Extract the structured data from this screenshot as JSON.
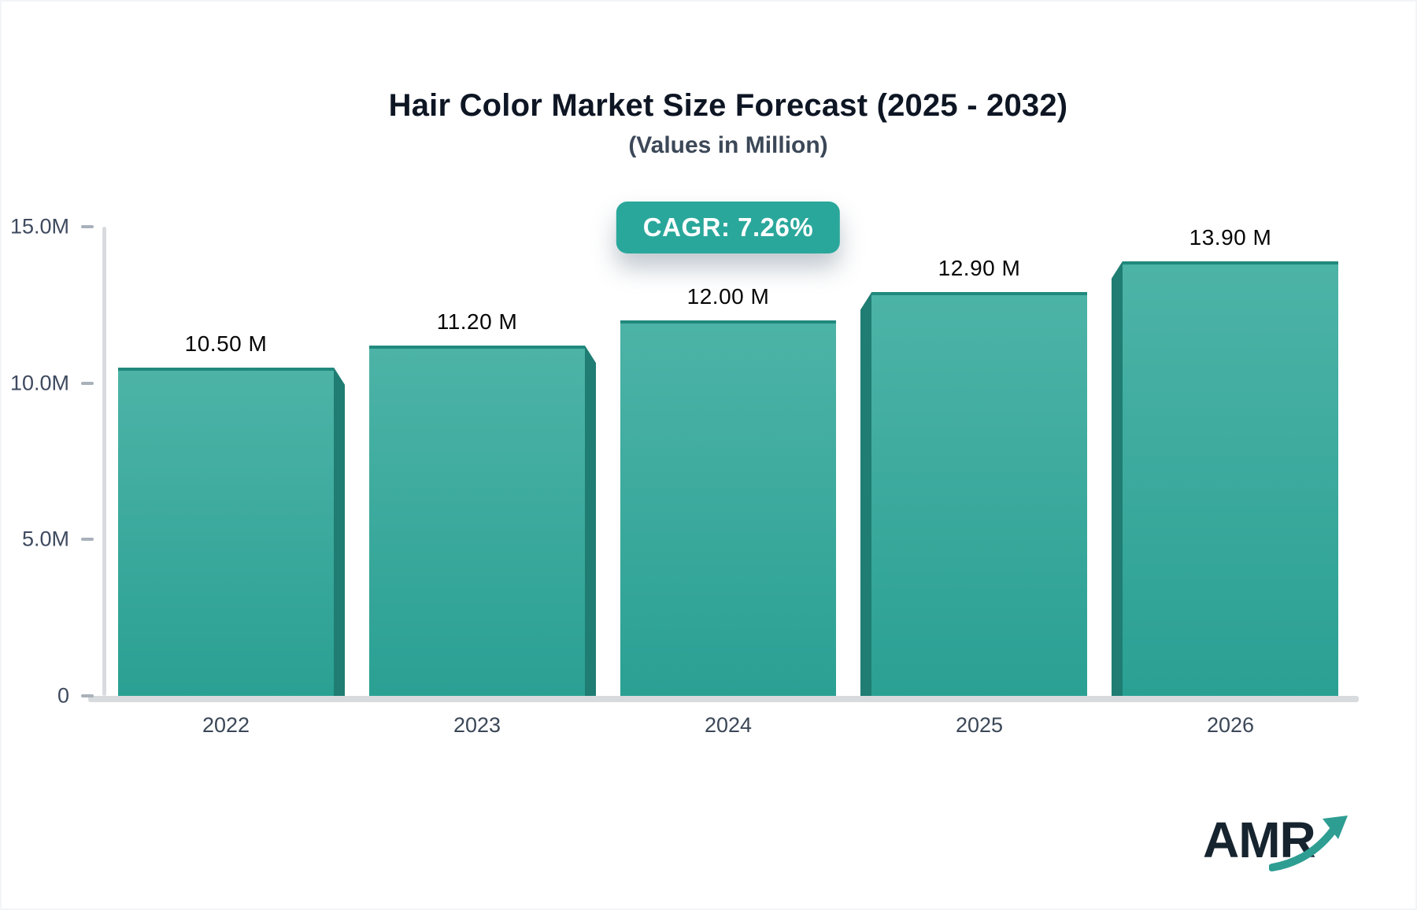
{
  "chart_data": {
    "type": "bar",
    "title": "Hair Color Market Size Forecast (2025 - 2032)",
    "subtitle": "(Values in Million)",
    "annotation": "CAGR: 7.26%",
    "categories": [
      "2022",
      "2023",
      "2024",
      "2025",
      "2026"
    ],
    "values": [
      10.5,
      11.2,
      12.0,
      12.9,
      13.9
    ],
    "value_labels": [
      "10.50 M",
      "11.20 M",
      "12.00 M",
      "12.90 M",
      "13.90 M"
    ],
    "xlabel": "",
    "ylabel": "",
    "ylim": [
      0,
      15
    ],
    "y_tick_labels": [
      "15.0M",
      "10.0M",
      "5.0M",
      "0"
    ],
    "y_tick_values": [
      15,
      10,
      5,
      0
    ],
    "grid": false,
    "legend": false,
    "bar_3d_side": [
      "right",
      "right",
      "none",
      "left",
      "left"
    ]
  },
  "logo": {
    "text": "AMR",
    "arrow_icon": "growth-arrow-icon"
  },
  "colors": {
    "badge_bg": "#2aa79b",
    "badge_text": "#ffffff",
    "bar_top": "#4db3a7",
    "bar_bottom": "#2aa093",
    "bar_side": "#1f7d73",
    "axis_line": "#d8dbde",
    "tick_dash": "#a9b1bb",
    "tick_text": "#3e4a5f",
    "title_text": "#0e1624",
    "subtitle_text": "#3c4858",
    "value_text": "#060606",
    "logo_text": "#16242f",
    "logo_arrow": "#2e9d92"
  }
}
